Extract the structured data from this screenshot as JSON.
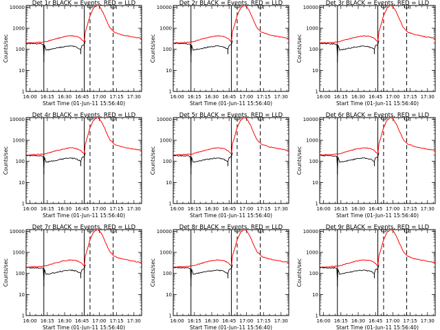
{
  "panels": [
    {
      "title": "Det 1r  BLACK = Events, RED = LLD",
      "xlabel": "Start Time (01-Jun-11 15:56:40)",
      "ylabel": "Counts/sec"
    },
    {
      "title": "Det 2r  BLACK = Events, RED = LLD",
      "xlabel": "Start Time (01-Jun-11 15:56:40)",
      "ylabel": "Counts/sec"
    },
    {
      "title": "Det 3r  BLACK = Events, RED = LLD",
      "xlabel": "Start Time (01-Jun-11 15:56:40)",
      "ylabel": "Counts/sec"
    },
    {
      "title": "Det 4r  BLACK = Events, RED = LLD",
      "xlabel": "Start Time (01-Jun-11 15:56:40)",
      "ylabel": "Counts/sec"
    },
    {
      "title": "Det 5r  BLACK = Events, RED = LLD",
      "xlabel": "Start Time (01-Jun-11 15:56:40)",
      "ylabel": "Counts/sec"
    },
    {
      "title": "Det 6r  BLACK = Events, RED = LLD",
      "xlabel": "Start Time (01-Jun-11 15:56:40)",
      "ylabel": "Counts/sec"
    },
    {
      "title": "Det 7r  BLACK = Events, RED = LLD",
      "xlabel": "Start Time (01-Jun-11 15:56:40)",
      "ylabel": "Counts/sec"
    },
    {
      "title": "Det 8r  BLACK = Events, RED = LLD",
      "xlabel": "Start Time (01-Jun-11 15:56:40)",
      "ylabel": "Counts/sec"
    },
    {
      "title": "Det 9r  BLACK = Events, RED = LLD",
      "xlabel": "Start Time (01-Jun-11 15:56:40)",
      "ylabel": "Counts/sec"
    }
  ],
  "chart_data": {
    "type": "line",
    "x_ticks": [
      "16:00",
      "16:15",
      "16:30",
      "16:45",
      "17:00",
      "17:15",
      "17:30"
    ],
    "y_ticks": [
      "1",
      "10",
      "100",
      "1000",
      "10000"
    ],
    "xlim": [
      "15:56:40",
      "17:36:40"
    ],
    "ylim": [
      1,
      12000
    ],
    "yscale": "log",
    "colors": {
      "events": "#000000",
      "lld": "#ff0000"
    },
    "solid_vlines": [
      "16:12",
      "16:47"
    ],
    "dashed_vlines": [
      "16:52",
      "17:12"
    ],
    "lld_points": [
      [
        "15:56:40",
        200
      ],
      [
        "16:05",
        210
      ],
      [
        "16:11",
        220
      ],
      [
        "16:14",
        230
      ],
      [
        "16:20",
        290
      ],
      [
        "16:28",
        380
      ],
      [
        "16:35",
        440
      ],
      [
        "16:40",
        410
      ],
      [
        "16:44",
        330
      ],
      [
        "16:46",
        250
      ],
      [
        "16:47",
        230
      ],
      [
        "16:48",
        700
      ],
      [
        "16:50",
        1600
      ],
      [
        "16:52",
        4000
      ],
      [
        "16:55",
        9000
      ],
      [
        "16:58",
        12000
      ],
      [
        "17:00",
        11000
      ],
      [
        "17:03",
        6000
      ],
      [
        "17:06",
        2500
      ],
      [
        "17:09",
        1100
      ],
      [
        "17:13",
        650
      ],
      [
        "17:20",
        480
      ],
      [
        "17:30",
        380
      ],
      [
        "17:36:40",
        330
      ]
    ],
    "events_points": [
      [
        "15:56:40",
        190
      ],
      [
        "16:05",
        185
      ],
      [
        "16:10",
        180
      ],
      [
        "16:11:30",
        170
      ],
      [
        "16:12",
        40
      ],
      [
        "16:12:30",
        160
      ],
      [
        "16:14",
        90
      ],
      [
        "16:18",
        100
      ],
      [
        "16:25",
        120
      ],
      [
        "16:30",
        135
      ],
      [
        "16:35",
        145
      ],
      [
        "16:40",
        130
      ],
      [
        "16:44",
        100
      ],
      [
        "16:45",
        150
      ],
      [
        "16:47",
        170
      ],
      [
        "16:48",
        260
      ]
    ],
    "event_marks": [
      [
        "16:12",
        40
      ],
      [
        "16:44",
        100
      ],
      [
        "16:47",
        170
      ]
    ],
    "lld_flag_marks": [
      [
        "16:52",
        11000
      ],
      [
        "17:12",
        10500
      ]
    ]
  }
}
